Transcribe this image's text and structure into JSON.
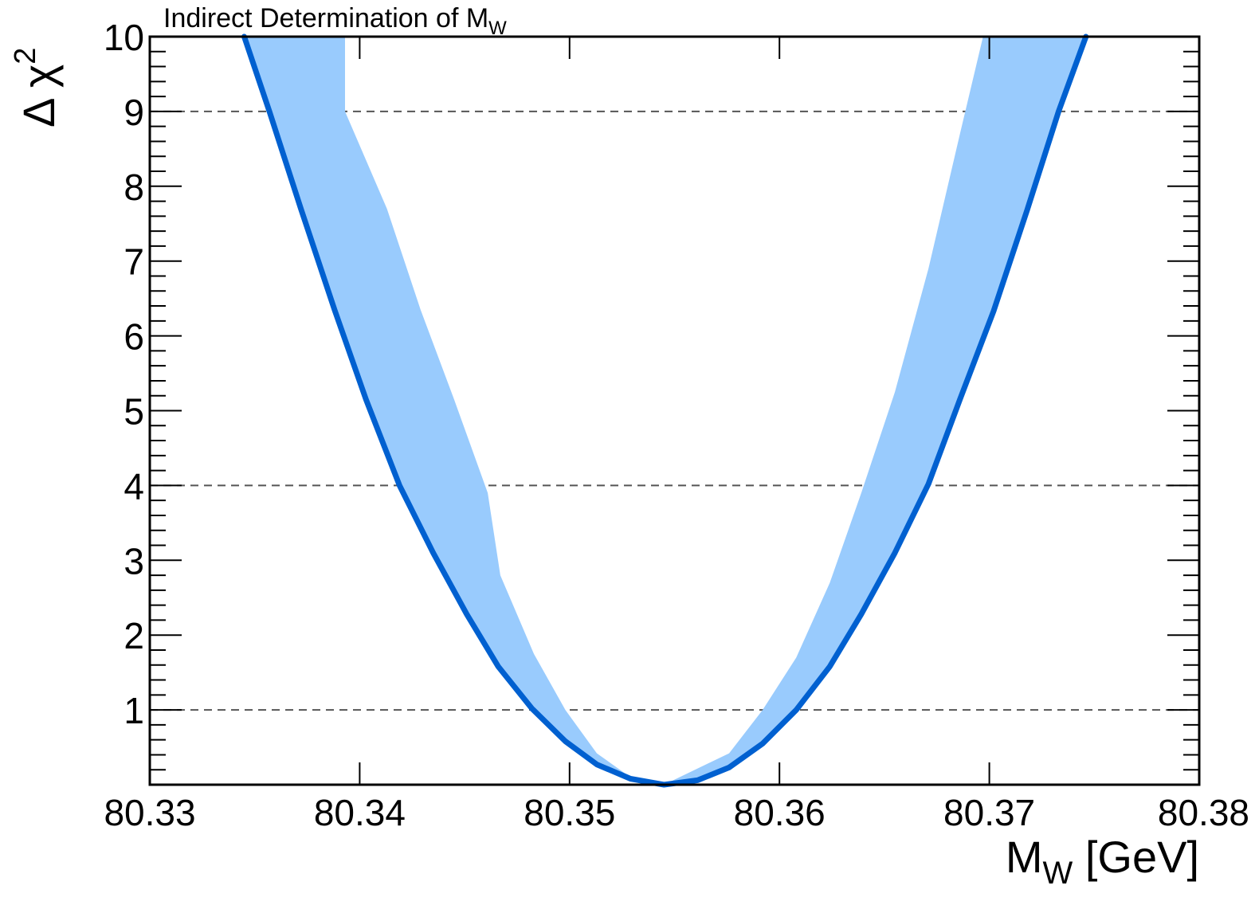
{
  "chart_data": {
    "type": "line",
    "title": "Indirect Determination of M",
    "title_sub": "W",
    "xlabel_main": "M",
    "xlabel_sub": "W",
    "xlabel_unit": " [GeV]",
    "ylabel_main": "Δ χ",
    "ylabel_sup": "2",
    "xlim": [
      80.33,
      80.38
    ],
    "ylim": [
      0,
      10
    ],
    "x_ticks": [
      "80.33",
      "80.34",
      "80.35",
      "80.36",
      "80.37",
      "80.38"
    ],
    "y_ticks": [
      "1",
      "2",
      "3",
      "4",
      "5",
      "6",
      "7",
      "8",
      "9",
      "10"
    ],
    "reference_lines": [
      1,
      4,
      9
    ],
    "grid": false,
    "colors": {
      "curve": "#0060d0",
      "band": "#99cbfd",
      "reference": "#555555"
    },
    "series": [
      {
        "values": [
          [
            80.3345,
            10.0
          ],
          [
            80.3357,
            9.0
          ],
          [
            80.3372,
            7.7
          ],
          [
            80.3388,
            6.35
          ],
          [
            80.3403,
            5.15
          ],
          [
            80.3419,
            4.0
          ],
          [
            80.3435,
            3.1
          ],
          [
            80.3451,
            2.28
          ],
          [
            80.3466,
            1.58
          ],
          [
            80.3482,
            1.02
          ],
          [
            80.3498,
            0.58
          ],
          [
            80.3513,
            0.27
          ],
          [
            80.3529,
            0.08
          ],
          [
            80.3545,
            0.0
          ],
          [
            80.3561,
            0.06
          ],
          [
            80.3576,
            0.23
          ],
          [
            80.3592,
            0.55
          ],
          [
            80.3608,
            1.0
          ],
          [
            80.3624,
            1.58
          ],
          [
            80.3639,
            2.28
          ],
          [
            80.3655,
            3.1
          ],
          [
            80.3671,
            4.02
          ],
          [
            80.3686,
            5.15
          ],
          [
            80.3702,
            6.33
          ],
          [
            80.3718,
            7.68
          ],
          [
            80.3733,
            9.0
          ],
          [
            80.3746,
            10.0
          ]
        ]
      }
    ],
    "band": {
      "upper_left": [
        [
          80.3393,
          10.0
        ],
        [
          80.3393,
          9.0
        ],
        [
          80.3413,
          7.7
        ],
        [
          80.3429,
          6.35
        ],
        [
          80.3445,
          5.15
        ],
        [
          80.3461,
          3.9
        ],
        [
          80.3467,
          2.8
        ],
        [
          80.3483,
          1.75
        ],
        [
          80.3498,
          1.0
        ],
        [
          80.3513,
          0.42
        ],
        [
          80.3529,
          0.1
        ],
        [
          80.3545,
          0.0
        ]
      ],
      "lower_right": [
        [
          80.3545,
          0.0
        ],
        [
          80.3576,
          0.42
        ],
        [
          80.3592,
          1.0
        ],
        [
          80.3608,
          1.7
        ],
        [
          80.3624,
          2.7
        ],
        [
          80.3639,
          3.9
        ],
        [
          80.3655,
          5.25
        ],
        [
          80.3671,
          6.9
        ],
        [
          80.3686,
          8.7
        ],
        [
          80.3697,
          10.0
        ]
      ]
    }
  }
}
